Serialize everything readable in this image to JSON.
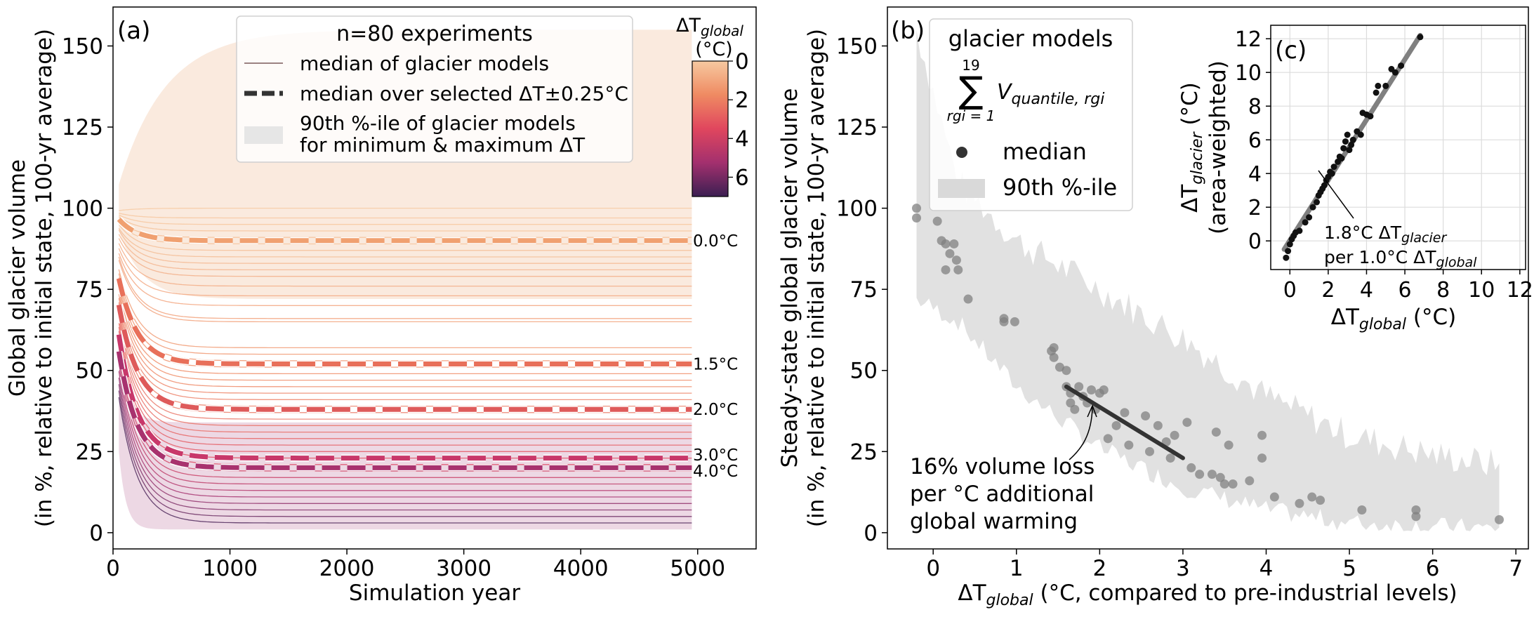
{
  "figure": {
    "panel_a": {
      "panel_label": "(a)",
      "ylabel_line1": "Global glacier volume",
      "ylabel_line2": "(in %, relative to initial state, 100-yr average)",
      "xlabel": "Simulation year",
      "legend": {
        "title": "n=80 experiments",
        "item1": "median of glacier models",
        "item2": "median over selected ΔT±0.25°C",
        "item3_line1": "90th %-ile of glacier models",
        "item3_line2": "for minimum & maximum ΔT"
      },
      "colorbar": {
        "title_delta": "ΔT",
        "title_sub": "global",
        "title_unit": "(°C)",
        "ticks": [
          "0",
          "2",
          "4",
          "6"
        ]
      },
      "end_labels": [
        "0.0°C",
        "1.5°C",
        "2.0°C",
        "3.0°C",
        "4.0°C"
      ]
    },
    "panel_b": {
      "panel_label": "(b)",
      "ylabel_line1": "Steady-state global glacier volume",
      "ylabel_line2": "(in %, relative to initial state, 100-yr average)",
      "xlabel_delta": "ΔT",
      "xlabel_sub": "global",
      "xlabel_rest": " (°C, compared to pre-industrial levels)",
      "legend": {
        "title": "glacier models",
        "sum_upper": "19",
        "sum_lower": "rgi = 1",
        "sum_var": "V",
        "sum_sub": "quantile, rgi",
        "median": "median",
        "band": "90th %-ile"
      },
      "annotation": [
        "16% volume loss",
        "per °C additional",
        "global warming"
      ]
    },
    "panel_c": {
      "panel_label": "(c)",
      "ylabel_delta": "ΔT",
      "ylabel_sub": "glacier",
      "ylabel_unit": " (°C)",
      "ylabel_line2": "(area-weighted)",
      "xlabel_delta": "ΔT",
      "xlabel_sub": "global",
      "xlabel_unit": " (°C)",
      "annotation_line1_pre": "1.8°C ΔT",
      "annotation_line1_sub": "glacier",
      "annotation_line2_pre": "per 1.0°C ΔT",
      "annotation_line2_sub": "global"
    }
  },
  "colors": {
    "t0": "#f0a070",
    "t15": "#e8705a",
    "t20": "#de5a5a",
    "t30": "#c8386a",
    "t40": "#a8326e",
    "band_low": "#f8e0d0",
    "band_high": "#e8c8d8",
    "scatter": "#808080",
    "gray_band": "#d9d9d9"
  },
  "chart_data": [
    {
      "type": "line",
      "title": "",
      "xlabel": "Simulation year",
      "ylabel": "Global glacier volume (in %, relative to initial state, 100-yr average)",
      "xlim": [
        0,
        5500
      ],
      "ylim": [
        -5,
        162
      ],
      "xticks": [
        0,
        1000,
        2000,
        3000,
        4000,
        5000
      ],
      "yticks": [
        0,
        25,
        50,
        75,
        100,
        125,
        150
      ],
      "grid": false,
      "legend_position": "top-center",
      "median_series": [
        {
          "name": "0.0°C",
          "start": 99,
          "end": 90,
          "color": "#f0a070"
        },
        {
          "name": "1.5°C",
          "start": 88,
          "end": 52,
          "color": "#e8705a"
        },
        {
          "name": "2.0°C",
          "start": 82,
          "end": 38,
          "color": "#de5a5a"
        },
        {
          "name": "3.0°C",
          "start": 75,
          "end": 23,
          "color": "#c8386a"
        },
        {
          "name": "4.0°C",
          "start": 69,
          "end": 20,
          "color": "#a8326e"
        }
      ],
      "experiment_curves": [
        {
          "start": 99,
          "end": 100,
          "dT": 0.0
        },
        {
          "start": 99,
          "end": 97,
          "dT": 0.1
        },
        {
          "start": 99,
          "end": 95,
          "dT": 0.1
        },
        {
          "start": 99,
          "end": 93,
          "dT": 0.2
        },
        {
          "start": 98,
          "end": 91,
          "dT": 0.3
        },
        {
          "start": 98,
          "end": 89,
          "dT": 0.2
        },
        {
          "start": 98,
          "end": 87,
          "dT": 0.3
        },
        {
          "start": 97,
          "end": 85,
          "dT": 0.4
        },
        {
          "start": 97,
          "end": 83,
          "dT": 0.5
        },
        {
          "start": 96,
          "end": 81,
          "dT": 0.6
        },
        {
          "start": 95,
          "end": 79,
          "dT": 0.8
        },
        {
          "start": 94,
          "end": 76,
          "dT": 0.9
        },
        {
          "start": 93,
          "end": 73,
          "dT": 1.0
        },
        {
          "start": 92,
          "end": 70,
          "dT": 1.1
        },
        {
          "start": 92,
          "end": 66,
          "dT": 1.2
        },
        {
          "start": 91,
          "end": 65,
          "dT": 1.2
        },
        {
          "start": 90,
          "end": 57,
          "dT": 1.4
        },
        {
          "start": 89,
          "end": 55,
          "dT": 1.5
        },
        {
          "start": 88,
          "end": 53,
          "dT": 1.6
        },
        {
          "start": 87,
          "end": 51,
          "dT": 1.7
        },
        {
          "start": 86,
          "end": 49,
          "dT": 1.8
        },
        {
          "start": 85,
          "end": 47,
          "dT": 1.8
        },
        {
          "start": 84,
          "end": 45,
          "dT": 1.9
        },
        {
          "start": 83,
          "end": 43,
          "dT": 2.0
        },
        {
          "start": 82,
          "end": 41,
          "dT": 2.1
        },
        {
          "start": 81,
          "end": 39,
          "dT": 2.2
        },
        {
          "start": 80,
          "end": 37,
          "dT": 2.3
        },
        {
          "start": 79,
          "end": 35,
          "dT": 2.4
        },
        {
          "start": 78,
          "end": 33,
          "dT": 2.5
        },
        {
          "start": 77,
          "end": 31,
          "dT": 2.6
        },
        {
          "start": 76,
          "end": 29,
          "dT": 2.8
        },
        {
          "start": 75,
          "end": 27,
          "dT": 3.0
        },
        {
          "start": 74,
          "end": 25,
          "dT": 3.2
        },
        {
          "start": 73,
          "end": 23,
          "dT": 3.4
        },
        {
          "start": 72,
          "end": 21,
          "dT": 3.6
        },
        {
          "start": 71,
          "end": 19,
          "dT": 3.9
        },
        {
          "start": 70,
          "end": 17,
          "dT": 4.2
        },
        {
          "start": 68,
          "end": 15,
          "dT": 4.5
        },
        {
          "start": 66,
          "end": 13,
          "dT": 4.8
        },
        {
          "start": 64,
          "end": 11,
          "dT": 5.2
        },
        {
          "start": 62,
          "end": 9,
          "dT": 5.6
        },
        {
          "start": 60,
          "end": 7,
          "dT": 5.9
        },
        {
          "start": 58,
          "end": 5,
          "dT": 6.3
        },
        {
          "start": 56,
          "end": 3,
          "dT": 6.8
        }
      ],
      "bands": [
        {
          "name": "90th %-ile min ΔT",
          "lower_end": 72,
          "upper_end": 155
        },
        {
          "name": "90th %-ile max ΔT",
          "lower_end": 1,
          "upper_end": 34
        }
      ],
      "colorbar": {
        "label": "ΔT global (°C)",
        "range": [
          0,
          7
        ],
        "ticks": [
          0,
          2,
          4,
          6
        ]
      }
    },
    {
      "type": "scatter",
      "title": "",
      "xlabel": "ΔT global (°C, compared to pre-industrial levels)",
      "ylabel": "Steady-state global glacier volume (in %, relative to initial state, 100-yr average)",
      "xlim": [
        -0.55,
        7.15
      ],
      "ylim": [
        -5,
        162
      ],
      "xticks": [
        0,
        1,
        2,
        3,
        4,
        5,
        6,
        7
      ],
      "yticks": [
        0,
        25,
        50,
        75,
        100,
        125,
        150
      ],
      "grid": false,
      "legend_position": "top-left",
      "points": [
        [
          -0.2,
          100
        ],
        [
          -0.2,
          97
        ],
        [
          0.05,
          96
        ],
        [
          0.1,
          90
        ],
        [
          0.15,
          89
        ],
        [
          0.15,
          81
        ],
        [
          0.2,
          86
        ],
        [
          0.25,
          89
        ],
        [
          0.28,
          84
        ],
        [
          0.3,
          81
        ],
        [
          0.42,
          72
        ],
        [
          0.85,
          66
        ],
        [
          0.85,
          65
        ],
        [
          0.98,
          65
        ],
        [
          1.42,
          56
        ],
        [
          1.45,
          57
        ],
        [
          1.45,
          54
        ],
        [
          1.52,
          51
        ],
        [
          1.6,
          50
        ],
        [
          1.6,
          45
        ],
        [
          1.65,
          40
        ],
        [
          1.65,
          43
        ],
        [
          1.7,
          38
        ],
        [
          1.75,
          45
        ],
        [
          1.8,
          42
        ],
        [
          1.85,
          40
        ],
        [
          1.9,
          44
        ],
        [
          1.95,
          38
        ],
        [
          2.0,
          43
        ],
        [
          2.05,
          44
        ],
        [
          2.1,
          29
        ],
        [
          2.2,
          33
        ],
        [
          2.3,
          37
        ],
        [
          2.35,
          27
        ],
        [
          2.55,
          36
        ],
        [
          2.6,
          25
        ],
        [
          2.7,
          33
        ],
        [
          2.8,
          28
        ],
        [
          2.85,
          23
        ],
        [
          2.9,
          30
        ],
        [
          3.05,
          34
        ],
        [
          3.1,
          20
        ],
        [
          3.2,
          18
        ],
        [
          3.35,
          18
        ],
        [
          3.4,
          31
        ],
        [
          3.45,
          17
        ],
        [
          3.5,
          15
        ],
        [
          3.55,
          27
        ],
        [
          3.6,
          15
        ],
        [
          3.8,
          16
        ],
        [
          3.95,
          30
        ],
        [
          3.95,
          23
        ],
        [
          4.1,
          11
        ],
        [
          4.4,
          9
        ],
        [
          4.55,
          11
        ],
        [
          4.65,
          10
        ],
        [
          5.15,
          7
        ],
        [
          5.8,
          5
        ],
        [
          5.8,
          7
        ],
        [
          6.8,
          4
        ]
      ],
      "fit_line": {
        "x": [
          1.6,
          3.0
        ],
        "y": [
          45,
          23
        ],
        "slope_percent_per_degC": -16
      },
      "band_upper": [
        [
          -0.2,
          155
        ],
        [
          0.3,
          108
        ],
        [
          1,
          90
        ],
        [
          2,
          75
        ],
        [
          3,
          60
        ],
        [
          4,
          42
        ],
        [
          5,
          30
        ],
        [
          6,
          24
        ],
        [
          7,
          20
        ]
      ],
      "band_lower": [
        [
          -0.2,
          72
        ],
        [
          0.3,
          65
        ],
        [
          1,
          45
        ],
        [
          2,
          26
        ],
        [
          3,
          14
        ],
        [
          4,
          7
        ],
        [
          5,
          3
        ],
        [
          6,
          2
        ],
        [
          7,
          1
        ]
      ]
    },
    {
      "type": "scatter",
      "title": "",
      "xlabel": "ΔT global (°C)",
      "ylabel": "ΔT glacier (°C) (area-weighted)",
      "xlim": [
        -1,
        12.3
      ],
      "ylim": [
        -1.7,
        12.8
      ],
      "xticks": [
        0,
        2,
        4,
        6,
        8,
        10,
        12
      ],
      "yticks": [
        0,
        2,
        4,
        6,
        8,
        10,
        12
      ],
      "grid": true,
      "points": [
        [
          -0.2,
          -1.0
        ],
        [
          -0.1,
          -0.6
        ],
        [
          0,
          -0.2
        ],
        [
          0.1,
          0.1
        ],
        [
          0.2,
          0.3
        ],
        [
          0.3,
          0.5
        ],
        [
          0.5,
          0.6
        ],
        [
          0.8,
          1.1
        ],
        [
          1.0,
          1.4
        ],
        [
          1.2,
          2.0
        ],
        [
          1.4,
          2.3
        ],
        [
          1.5,
          2.7
        ],
        [
          1.6,
          2.9
        ],
        [
          1.7,
          3.1
        ],
        [
          1.8,
          3.3
        ],
        [
          1.9,
          3.6
        ],
        [
          2.0,
          3.8
        ],
        [
          2.1,
          4.1
        ],
        [
          2.2,
          4.0
        ],
        [
          2.3,
          4.4
        ],
        [
          2.5,
          4.7
        ],
        [
          2.6,
          5.0
        ],
        [
          2.7,
          4.9
        ],
        [
          2.8,
          5.5
        ],
        [
          2.9,
          5.9
        ],
        [
          3.0,
          6.3
        ],
        [
          3.1,
          5.4
        ],
        [
          3.2,
          5.7
        ],
        [
          3.3,
          6.0
        ],
        [
          3.5,
          6.5
        ],
        [
          3.7,
          6.3
        ],
        [
          3.8,
          7.6
        ],
        [
          4.0,
          7.5
        ],
        [
          4.2,
          7.4
        ],
        [
          4.5,
          8.8
        ],
        [
          4.6,
          9.2
        ],
        [
          5.0,
          9.2
        ],
        [
          5.3,
          10.2
        ],
        [
          5.5,
          10.0
        ],
        [
          5.8,
          10.4
        ],
        [
          6.8,
          12.1
        ]
      ],
      "fit_line": {
        "x": [
          -0.3,
          6.8
        ],
        "y": [
          -0.5,
          12.2
        ],
        "slope": 1.8
      }
    }
  ]
}
